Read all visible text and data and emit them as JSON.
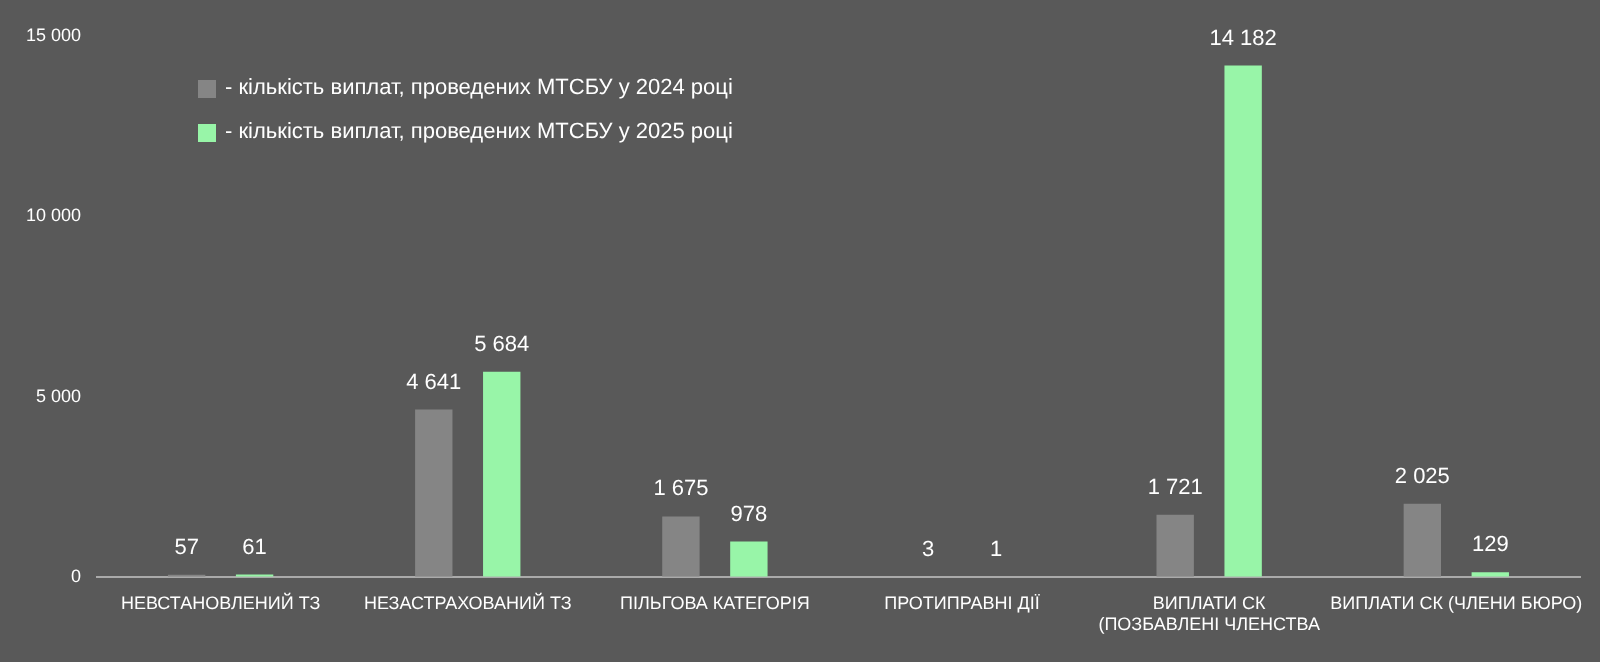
{
  "chart_data": {
    "type": "bar",
    "categories": [
      "НЕВСТАНОВЛЕНИЙ ТЗ",
      "НЕЗАСТРАХОВАНИЙ ТЗ",
      "ПІЛЬГОВА КАТЕГОРІЯ",
      "ПРОТИПРАВНІ ДІЇ",
      "ВИПЛАТИ СК\n(ПОЗБАВЛЕНІ ЧЛЕНСТВА",
      "ВИПЛАТИ СК (ЧЛЕНИ БЮРО)"
    ],
    "series": [
      {
        "name": "- кількість виплат, проведених МТСБУ у 2024 році",
        "color": "#858585",
        "values": [
          57,
          4641,
          1675,
          3,
          1721,
          2025
        ],
        "value_labels": [
          "57",
          "4 641",
          "1 675",
          "3",
          "1 721",
          "2 025"
        ]
      },
      {
        "name": "- кількість виплат, проведених МТСБУ у 2025 році",
        "color": "#98f5a8",
        "values": [
          61,
          5684,
          978,
          1,
          14182,
          129
        ],
        "value_labels": [
          "61",
          "5 684",
          "978",
          "1",
          "14 182",
          "129"
        ]
      }
    ],
    "ylim": [
      0,
      15000
    ],
    "yticks": [
      0,
      {
        "value": 5000,
        "label": "5 000"
      },
      {
        "value": 10000,
        "label": "10 000"
      },
      {
        "value": 15000,
        "label": "15 000"
      }
    ],
    "grid": false,
    "legend": "top left"
  }
}
